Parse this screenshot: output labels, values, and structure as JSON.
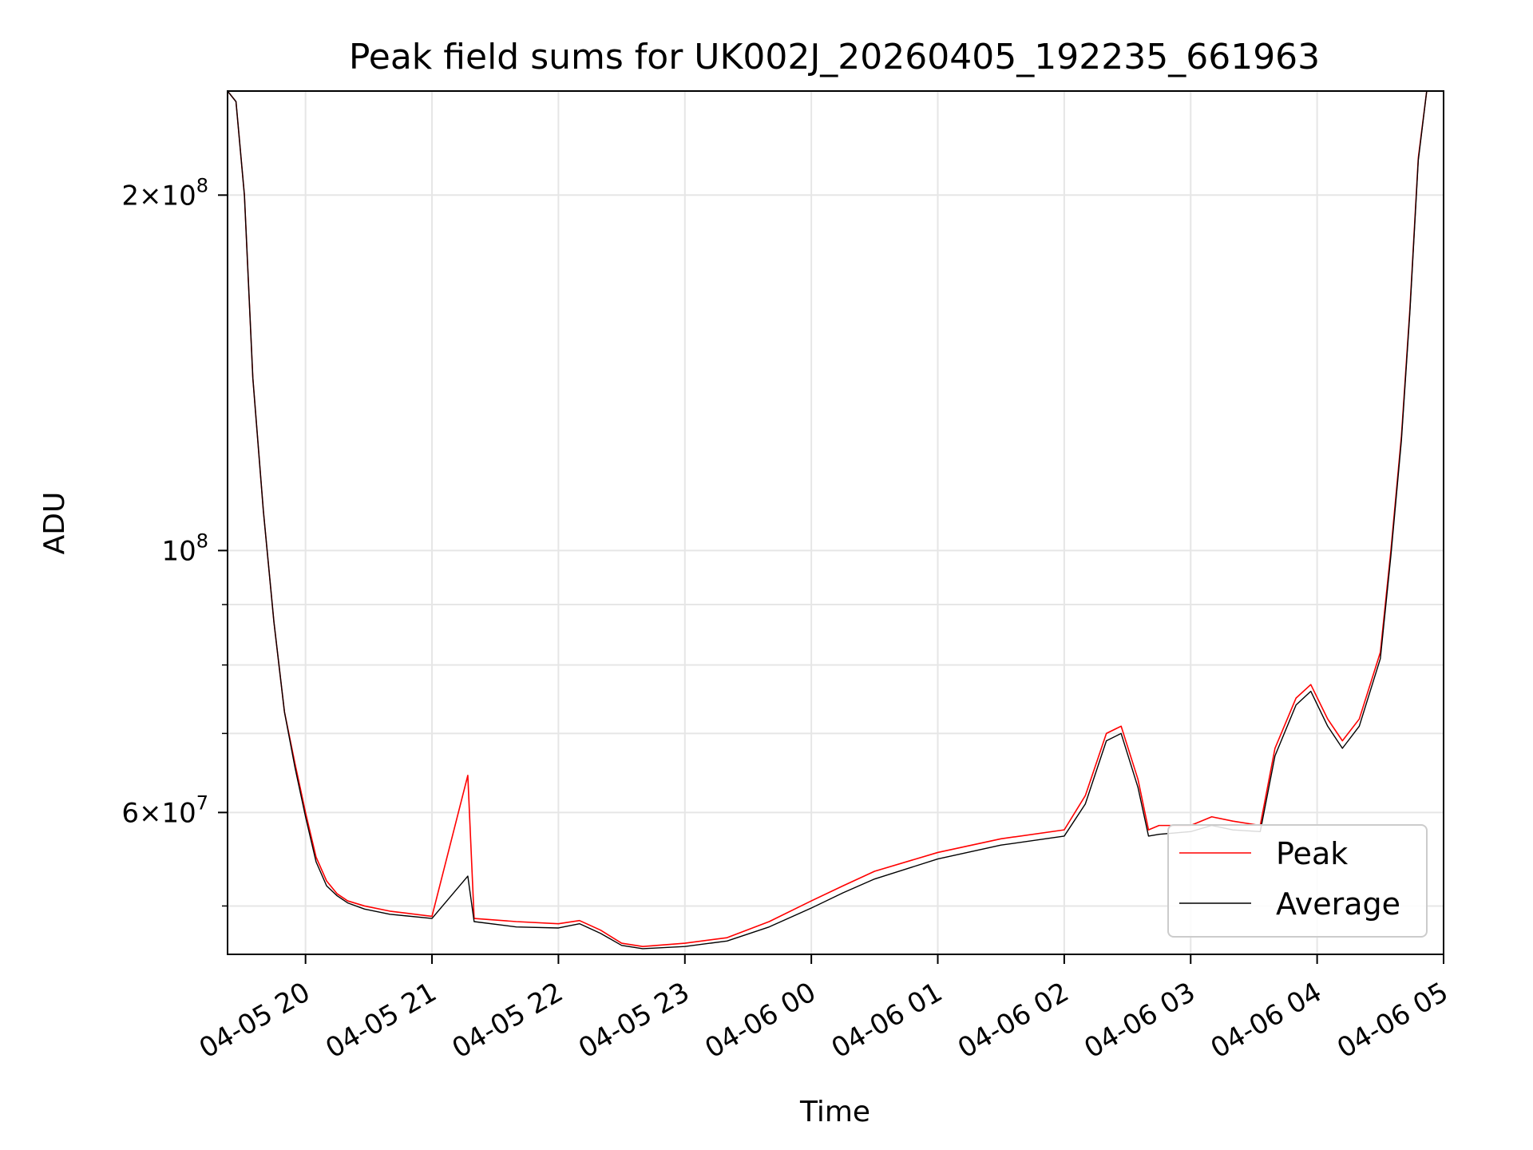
{
  "chart_data": {
    "type": "line",
    "title": "Peak field sums for UK002J_20260405_192235_661963",
    "xlabel": "Time",
    "ylabel": "ADU",
    "yscale": "log",
    "xlim": [
      "2026-04-05 19:23",
      "2026-04-06 05:00"
    ],
    "ylim": [
      45500000,
      245000000
    ],
    "grid": true,
    "legend_position": "lower-right",
    "x_ticks": [
      {
        "value": "2026-04-05 20:00",
        "label": "04-05 20"
      },
      {
        "value": "2026-04-05 21:00",
        "label": "04-05 21"
      },
      {
        "value": "2026-04-05 22:00",
        "label": "04-05 22"
      },
      {
        "value": "2026-04-05 23:00",
        "label": "04-05 23"
      },
      {
        "value": "2026-04-06 00:00",
        "label": "04-06 00"
      },
      {
        "value": "2026-04-06 01:00",
        "label": "04-06 01"
      },
      {
        "value": "2026-04-06 02:00",
        "label": "04-06 02"
      },
      {
        "value": "2026-04-06 03:00",
        "label": "04-06 03"
      },
      {
        "value": "2026-04-06 04:00",
        "label": "04-06 04"
      },
      {
        "value": "2026-04-06 05:00",
        "label": "04-06 05"
      }
    ],
    "y_ticks": [
      {
        "value": 60000000,
        "mantissa": "6",
        "exponent": "7"
      },
      {
        "value": 100000000,
        "mantissa": "",
        "exponent": "8"
      },
      {
        "value": 200000000,
        "mantissa": "2",
        "exponent": "8"
      }
    ],
    "y_minor_ticks": [
      50000000,
      70000000,
      80000000,
      90000000
    ],
    "series": [
      {
        "name": "Peak",
        "color": "#ff0000",
        "x": [
          "2026-04-05 19:23",
          "2026-04-05 19:27",
          "2026-04-05 19:31",
          "2026-04-05 19:35",
          "2026-04-05 19:40",
          "2026-04-05 19:45",
          "2026-04-05 19:50",
          "2026-04-05 19:55",
          "2026-04-05 20:00",
          "2026-04-05 20:05",
          "2026-04-05 20:10",
          "2026-04-05 20:15",
          "2026-04-05 20:20",
          "2026-04-05 20:28",
          "2026-04-05 20:40",
          "2026-04-05 21:00",
          "2026-04-05 21:17",
          "2026-04-05 21:20",
          "2026-04-05 21:40",
          "2026-04-05 22:00",
          "2026-04-05 22:10",
          "2026-04-05 22:20",
          "2026-04-05 22:30",
          "2026-04-05 22:40",
          "2026-04-05 23:00",
          "2026-04-05 23:20",
          "2026-04-05 23:40",
          "2026-04-06 00:00",
          "2026-04-06 00:15",
          "2026-04-06 00:30",
          "2026-04-06 01:00",
          "2026-04-06 01:30",
          "2026-04-06 02:00",
          "2026-04-06 02:10",
          "2026-04-06 02:20",
          "2026-04-06 02:27",
          "2026-04-06 02:35",
          "2026-04-06 02:40",
          "2026-04-06 02:45",
          "2026-04-06 03:00",
          "2026-04-06 03:10",
          "2026-04-06 03:20",
          "2026-04-06 03:33",
          "2026-04-06 03:40",
          "2026-04-06 03:50",
          "2026-04-06 03:57",
          "2026-04-06 04:05",
          "2026-04-06 04:12",
          "2026-04-06 04:20",
          "2026-04-06 04:30",
          "2026-04-06 04:35",
          "2026-04-06 04:40",
          "2026-04-06 04:44",
          "2026-04-06 04:48",
          "2026-04-06 04:52",
          "2026-04-06 05:00"
        ],
        "y": [
          245000000,
          240000000,
          200000000,
          140000000,
          108000000,
          87000000,
          73000000,
          66000000,
          60000000,
          55000000,
          52500000,
          51200000,
          50500000,
          50000000,
          49500000,
          49000000,
          64500000,
          48800000,
          48500000,
          48300000,
          48600000,
          47700000,
          46500000,
          46200000,
          46500000,
          47000000,
          48500000,
          50500000,
          52000000,
          53500000,
          55500000,
          57000000,
          58000000,
          62000000,
          70000000,
          71000000,
          64000000,
          58000000,
          58500000,
          58500000,
          59500000,
          59000000,
          58500000,
          68000000,
          75000000,
          77000000,
          72000000,
          69000000,
          72000000,
          82000000,
          100000000,
          125000000,
          160000000,
          215000000,
          245000000,
          245000000
        ]
      },
      {
        "name": "Average",
        "color": "#000000",
        "x": [
          "2026-04-05 19:23",
          "2026-04-05 19:27",
          "2026-04-05 19:31",
          "2026-04-05 19:35",
          "2026-04-05 19:40",
          "2026-04-05 19:45",
          "2026-04-05 19:50",
          "2026-04-05 19:55",
          "2026-04-05 20:00",
          "2026-04-05 20:05",
          "2026-04-05 20:10",
          "2026-04-05 20:15",
          "2026-04-05 20:20",
          "2026-04-05 20:28",
          "2026-04-05 20:40",
          "2026-04-05 21:00",
          "2026-04-05 21:17",
          "2026-04-05 21:20",
          "2026-04-05 21:40",
          "2026-04-05 22:00",
          "2026-04-05 22:10",
          "2026-04-05 22:20",
          "2026-04-05 22:30",
          "2026-04-05 22:40",
          "2026-04-05 23:00",
          "2026-04-05 23:20",
          "2026-04-05 23:40",
          "2026-04-06 00:00",
          "2026-04-06 00:15",
          "2026-04-06 00:30",
          "2026-04-06 01:00",
          "2026-04-06 01:30",
          "2026-04-06 02:00",
          "2026-04-06 02:10",
          "2026-04-06 02:20",
          "2026-04-06 02:27",
          "2026-04-06 02:35",
          "2026-04-06 02:40",
          "2026-04-06 02:45",
          "2026-04-06 03:00",
          "2026-04-06 03:10",
          "2026-04-06 03:20",
          "2026-04-06 03:33",
          "2026-04-06 03:40",
          "2026-04-06 03:50",
          "2026-04-06 03:57",
          "2026-04-06 04:05",
          "2026-04-06 04:12",
          "2026-04-06 04:20",
          "2026-04-06 04:30",
          "2026-04-06 04:35",
          "2026-04-06 04:40",
          "2026-04-06 04:44",
          "2026-04-06 04:48",
          "2026-04-06 04:52",
          "2026-04-06 05:00"
        ],
        "y": [
          245000000,
          240000000,
          200000000,
          140000000,
          108000000,
          87000000,
          73000000,
          65500000,
          59500000,
          54500000,
          52000000,
          51000000,
          50300000,
          49700000,
          49200000,
          48800000,
          53000000,
          48500000,
          48000000,
          47900000,
          48300000,
          47400000,
          46300000,
          46000000,
          46200000,
          46700000,
          48000000,
          49800000,
          51300000,
          52700000,
          54800000,
          56300000,
          57300000,
          61000000,
          69000000,
          70000000,
          63000000,
          57300000,
          57500000,
          57800000,
          58500000,
          58000000,
          57800000,
          67000000,
          74000000,
          76000000,
          71000000,
          68000000,
          71000000,
          81000000,
          99000000,
          124000000,
          159000000,
          214000000,
          245000000,
          245000000
        ]
      }
    ]
  }
}
